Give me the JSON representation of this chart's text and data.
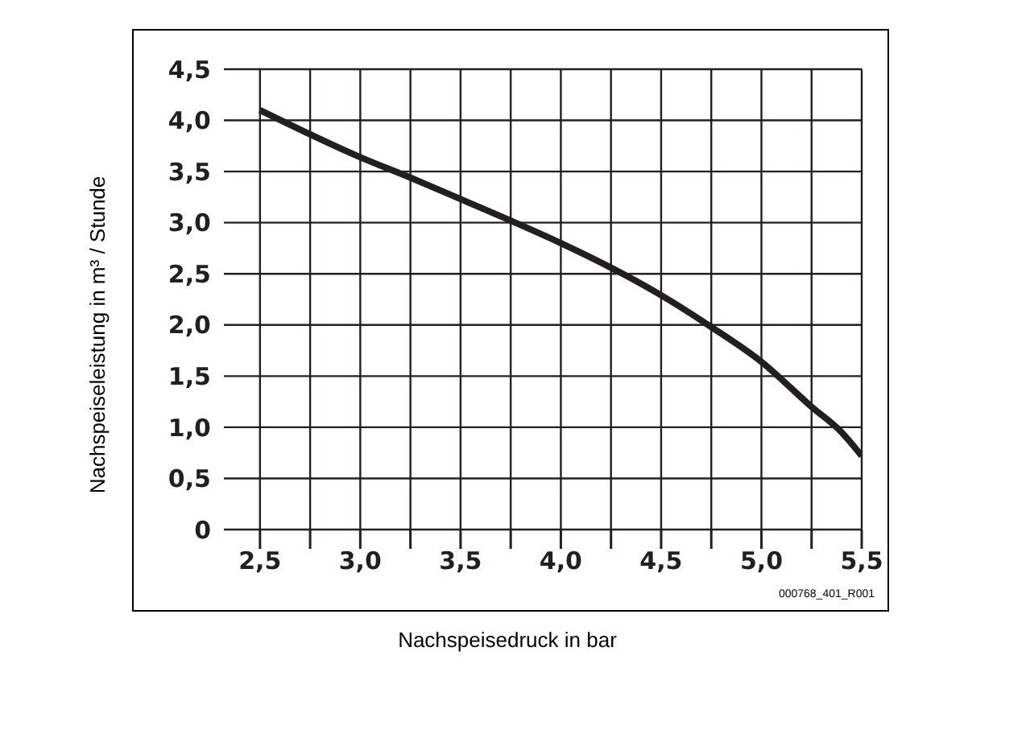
{
  "chart_data": {
    "type": "line",
    "xlabel": "Nachspeisedruck in bar",
    "ylabel": "Nachspeiseleistung in m³ / Stunde",
    "annotations": [
      "000768_401_R001"
    ],
    "x": [
      2.5,
      3.0,
      3.25,
      3.5,
      3.75,
      4.0,
      4.25,
      4.5,
      4.75,
      5.0,
      5.25,
      5.4,
      5.5
    ],
    "series": [
      {
        "color": "#231f20",
        "values": [
          4.1,
          3.64,
          3.44,
          3.23,
          3.02,
          2.8,
          2.56,
          2.29,
          1.98,
          1.64,
          1.2,
          0.95,
          0.72
        ]
      }
    ],
    "xlim": [
      2.32,
      5.5
    ],
    "xticks": [
      {
        "value": 2.5,
        "label": "2,5"
      },
      {
        "value": 2.75,
        "label": null
      },
      {
        "value": 3.0,
        "label": "3,0"
      },
      {
        "value": 3.25,
        "label": null
      },
      {
        "value": 3.5,
        "label": "3,5"
      },
      {
        "value": 3.75,
        "label": null
      },
      {
        "value": 4.0,
        "label": "4,0"
      },
      {
        "value": 4.25,
        "label": null
      },
      {
        "value": 4.5,
        "label": "4,5"
      },
      {
        "value": 4.75,
        "label": null
      },
      {
        "value": 5.0,
        "label": "5,0"
      },
      {
        "value": 5.25,
        "label": null
      },
      {
        "value": 5.5,
        "label": "5,5"
      }
    ],
    "ylim": [
      0,
      4.5
    ],
    "yticks": [
      0,
      {
        "value": 0.5,
        "label": "0,5"
      },
      {
        "value": 1.0,
        "label": "1,0"
      },
      {
        "value": 1.5,
        "label": "1,5"
      },
      {
        "value": 2.0,
        "label": "2,0"
      },
      {
        "value": 2.5,
        "label": "2,5"
      },
      {
        "value": 3.0,
        "label": "3,0"
      },
      {
        "value": 3.5,
        "label": "3,5"
      },
      {
        "value": 4.0,
        "label": "4,0"
      },
      {
        "value": 4.5,
        "label": "4,5"
      }
    ],
    "grid": true,
    "marker": "none",
    "line_style": "solid"
  }
}
